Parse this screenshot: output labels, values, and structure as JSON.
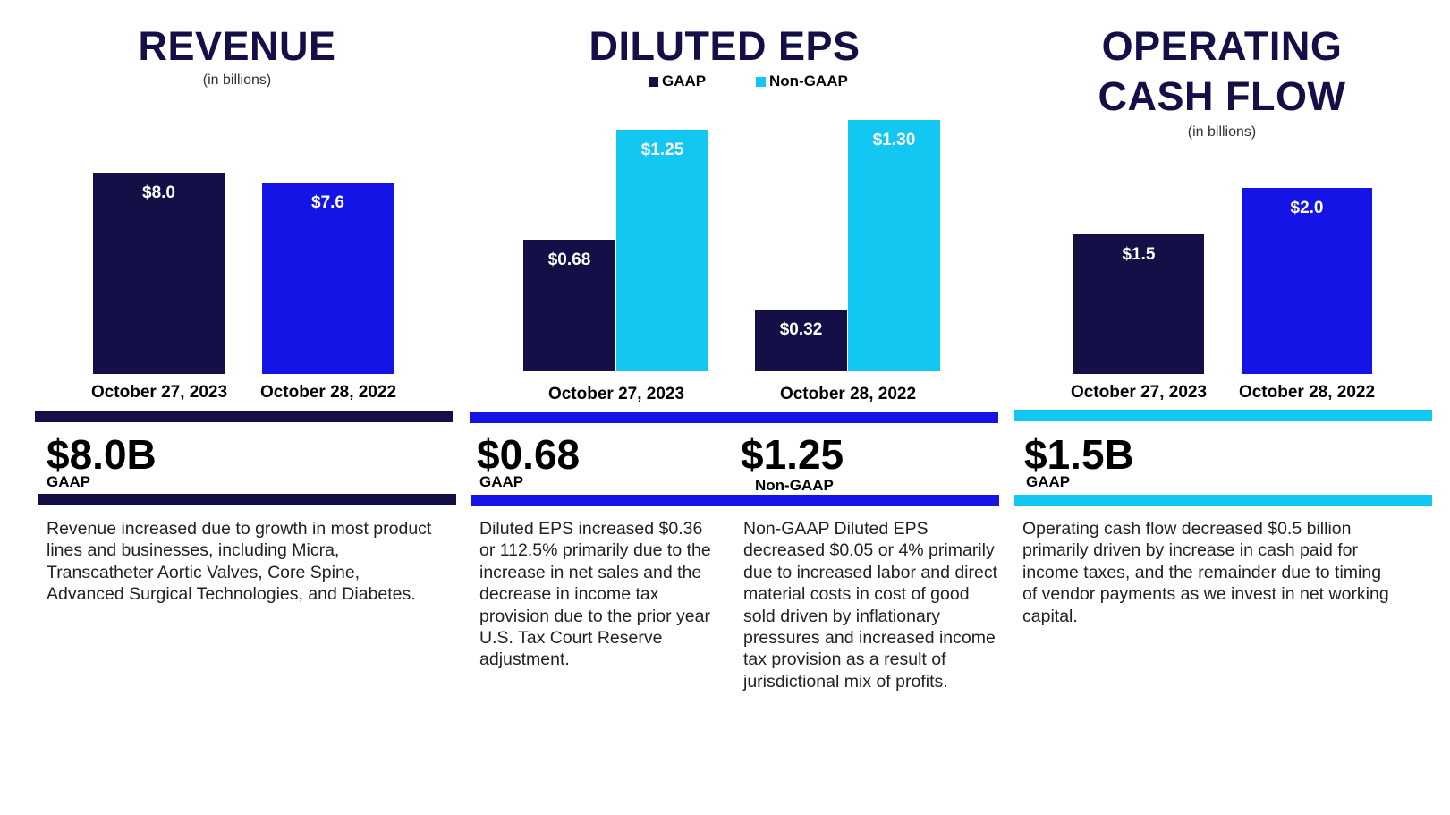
{
  "colors": {
    "navy": "#150f47",
    "blue": "#1414e6",
    "cyan": "#12c8f2"
  },
  "chart_data": [
    {
      "type": "bar",
      "title": "REVENUE",
      "subtitle": "(in billions)",
      "categories": [
        "October 27, 2023",
        "October 28, 2022"
      ],
      "values": [
        8.0,
        7.6
      ],
      "labels": [
        "$8.0",
        "$7.6"
      ],
      "colors": [
        "#150f47",
        "#1414e6"
      ]
    },
    {
      "type": "bar",
      "title": "DILUTED EPS",
      "categories": [
        "October 27, 2023",
        "October 28, 2022"
      ],
      "legend": "top",
      "series": [
        {
          "name": "GAAP",
          "values": [
            0.68,
            0.32
          ],
          "labels": [
            "$0.68",
            "$0.32"
          ],
          "color": "#150f47"
        },
        {
          "name": "Non-GAAP",
          "values": [
            1.25,
            1.3
          ],
          "labels": [
            "$1.25",
            "$1.30"
          ],
          "color": "#12c8f2"
        }
      ]
    },
    {
      "type": "bar",
      "title": "OPERATING CASH FLOW",
      "title_lines": [
        "OPERATING",
        "CASH FLOW"
      ],
      "subtitle": "(in billions)",
      "categories": [
        "October 27, 2023",
        "October 28, 2022"
      ],
      "values": [
        1.5,
        2.0
      ],
      "labels": [
        "$1.5",
        "$2.0"
      ],
      "colors": [
        "#150f47",
        "#1414e6"
      ]
    }
  ],
  "summary": {
    "revenue": {
      "value": "$8.0B",
      "tag": "GAAP",
      "text": "Revenue increased due to growth in most product lines and businesses, including Micra, Transcatheter Aortic Valves, Core Spine, Advanced Surgical Technologies, and Diabetes."
    },
    "eps_gaap": {
      "value": "$0.68",
      "tag": "GAAP",
      "text": "Diluted EPS increased $0.36 or 112.5% primarily due to the increase in net sales and the decrease in income tax provision due to the prior year U.S. Tax Court Reserve adjustment."
    },
    "eps_nongaap": {
      "value": "$1.25",
      "tag": "Non-GAAP",
      "text": "Non-GAAP Diluted EPS decreased $0.05 or 4% primarily due to increased labor and direct material costs in cost of good sold driven by inflationary pressures and increased income tax provision as a result of jurisdictional mix of profits."
    },
    "ocf": {
      "value": "$1.5B",
      "tag": "GAAP",
      "text": "Operating cash flow decreased $0.5 billion primarily driven by increase in cash paid for income taxes, and the remainder due to timing of vendor payments as we invest in net working capital."
    }
  }
}
